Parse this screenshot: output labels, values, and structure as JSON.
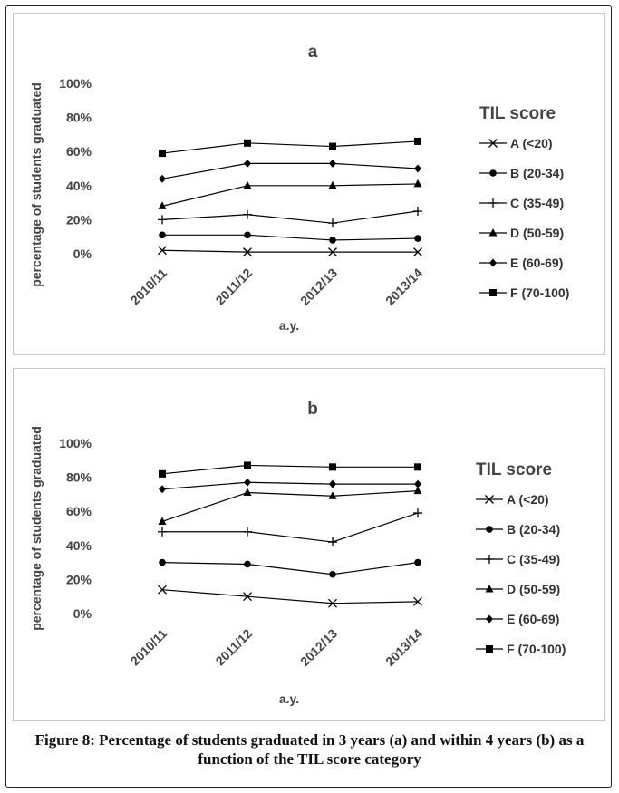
{
  "caption": "Figure 8: Percentage of students graduated in 3 years (a) and within 4 years (b) as a function of the TIL score category",
  "chart_data": [
    {
      "type": "line",
      "title": "a",
      "xlabel": "a.y.",
      "ylabel": "percentage of students graduated",
      "categories": [
        "2010/11",
        "2011/12",
        "2012/13",
        "2013/14"
      ],
      "yticks": [
        "0%",
        "20%",
        "40%",
        "60%",
        "80%",
        "100%"
      ],
      "ylim": [
        0,
        100
      ],
      "legend_title": "TIL score",
      "legend_position": "right",
      "series": [
        {
          "name": "A (<20)",
          "marker": "x",
          "values": [
            2,
            1,
            1,
            1
          ]
        },
        {
          "name": "B (20-34)",
          "marker": "circle",
          "values": [
            11,
            11,
            8,
            9
          ]
        },
        {
          "name": "C (35-49)",
          "marker": "plus",
          "values": [
            20,
            23,
            18,
            25
          ]
        },
        {
          "name": "D (50-59)",
          "marker": "triangle",
          "values": [
            28,
            40,
            40,
            41
          ]
        },
        {
          "name": "E (60-69)",
          "marker": "diamond",
          "values": [
            44,
            53,
            53,
            50
          ]
        },
        {
          "name": "F (70-100)",
          "marker": "square",
          "values": [
            59,
            65,
            63,
            66
          ]
        }
      ]
    },
    {
      "type": "line",
      "title": "b",
      "xlabel": "a.y.",
      "ylabel": "percentage of students graduated",
      "categories": [
        "2010/11",
        "2011/12",
        "2012/13",
        "2013/14"
      ],
      "yticks": [
        "0%",
        "20%",
        "40%",
        "60%",
        "80%",
        "100%"
      ],
      "ylim": [
        0,
        100
      ],
      "legend_title": "TIL score",
      "legend_position": "right",
      "series": [
        {
          "name": "A (<20)",
          "marker": "x",
          "values": [
            14,
            10,
            6,
            7
          ]
        },
        {
          "name": "B (20-34)",
          "marker": "circle",
          "values": [
            30,
            29,
            23,
            30
          ]
        },
        {
          "name": "C (35-49)",
          "marker": "plus",
          "values": [
            48,
            48,
            42,
            59
          ]
        },
        {
          "name": "D (50-59)",
          "marker": "triangle",
          "values": [
            54,
            71,
            69,
            72
          ]
        },
        {
          "name": "E (60-69)",
          "marker": "diamond",
          "values": [
            73,
            77,
            76,
            76
          ]
        },
        {
          "name": "F (70-100)",
          "marker": "square",
          "values": [
            82,
            87,
            86,
            86
          ]
        }
      ]
    }
  ]
}
